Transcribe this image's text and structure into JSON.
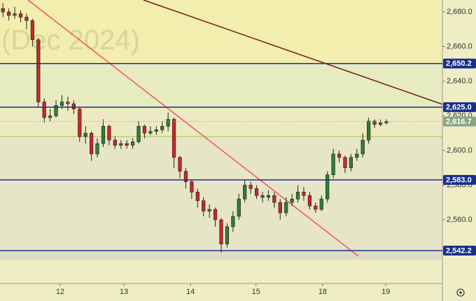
{
  "chart_data": {
    "type": "candlestick",
    "watermark": "(Dec 2024)",
    "x": [
      0,
      1,
      2,
      3,
      4,
      5,
      6,
      7,
      8,
      9,
      10,
      11,
      12,
      13,
      14,
      15,
      16,
      17,
      18,
      19,
      20,
      21,
      22,
      23,
      24,
      25,
      26,
      27,
      28,
      29,
      30,
      31,
      32,
      33,
      34,
      35,
      36,
      37,
      38,
      39,
      40,
      41,
      42,
      43,
      44,
      45,
      46,
      47,
      48,
      49,
      50,
      51,
      52,
      53,
      54,
      55,
      56,
      57,
      58,
      59,
      60,
      61,
      62,
      63,
      64,
      65
    ],
    "open": [
      2682,
      2680,
      2678,
      2679,
      2677,
      2675,
      2664,
      2628,
      2619,
      2620,
      2626,
      2628,
      2627,
      2624,
      2608,
      2610,
      2598,
      2604,
      2614,
      2606,
      2603,
      2604,
      2603,
      2605,
      2614,
      2610,
      2611,
      2612,
      2614,
      2618,
      2596,
      2588,
      2582,
      2576,
      2571,
      2565,
      2566,
      2560,
      2546,
      2556,
      2562,
      2572,
      2580,
      2578,
      2574,
      2573,
      2574,
      2570,
      2564,
      2570,
      2572,
      2576,
      2574,
      2568,
      2566,
      2572,
      2586,
      2598,
      2596,
      2590,
      2596,
      2598,
      2606,
      2617,
      2615,
      2616
    ],
    "high": [
      2685,
      2682,
      2683,
      2681,
      2679,
      2676,
      2665,
      2630,
      2624,
      2629,
      2632,
      2631,
      2629,
      2625,
      2614,
      2611,
      2607,
      2618,
      2615,
      2608,
      2606,
      2606,
      2607,
      2617,
      2615,
      2614,
      2614,
      2617,
      2622,
      2619,
      2597,
      2590,
      2583,
      2578,
      2573,
      2569,
      2567,
      2561,
      2558,
      2565,
      2575,
      2583,
      2582,
      2580,
      2576,
      2577,
      2576,
      2572,
      2573,
      2575,
      2580,
      2579,
      2576,
      2570,
      2574,
      2588,
      2601,
      2600,
      2597,
      2598,
      2601,
      2610,
      2619,
      2618,
      2618,
      2618
    ],
    "low": [
      2677,
      2675,
      2676,
      2674,
      2670,
      2660,
      2625,
      2616,
      2617,
      2619,
      2624,
      2623,
      2621,
      2605,
      2604,
      2594,
      2596,
      2602,
      2603,
      2601,
      2601,
      2601,
      2601,
      2604,
      2607,
      2609,
      2609,
      2610,
      2611,
      2590,
      2584,
      2578,
      2572,
      2567,
      2562,
      2561,
      2556,
      2541,
      2544,
      2553,
      2560,
      2570,
      2575,
      2572,
      2570,
      2571,
      2567,
      2560,
      2562,
      2568,
      2570,
      2571,
      2566,
      2564,
      2565,
      2570,
      2584,
      2593,
      2587,
      2588,
      2594,
      2596,
      2604,
      2613,
      2614,
      2615
    ],
    "close": [
      2680,
      2678,
      2679,
      2677,
      2675,
      2664,
      2628,
      2619,
      2620,
      2626,
      2628,
      2627,
      2624,
      2608,
      2610,
      2598,
      2604,
      2614,
      2606,
      2603,
      2604,
      2603,
      2605,
      2614,
      2610,
      2611,
      2612,
      2614,
      2618,
      2596,
      2588,
      2582,
      2576,
      2571,
      2565,
      2566,
      2560,
      2546,
      2556,
      2562,
      2572,
      2580,
      2578,
      2574,
      2573,
      2574,
      2570,
      2564,
      2570,
      2572,
      2576,
      2574,
      2568,
      2566,
      2572,
      2586,
      2598,
      2596,
      2590,
      2596,
      2598,
      2606,
      2617,
      2615,
      2616,
      2616.7
    ],
    "up_color": "#2f7d32",
    "down_color": "#c62828",
    "xlim": [
      -0.5,
      74.5
    ],
    "xticks": [
      {
        "value": 9.7,
        "label": "12"
      },
      {
        "value": 20.5,
        "label": "13"
      },
      {
        "value": 31.8,
        "label": "14"
      },
      {
        "value": 42.9,
        "label": "15"
      },
      {
        "value": 54.2,
        "label": "18"
      },
      {
        "value": 64.9,
        "label": "19"
      }
    ],
    "ylim": [
      2523.2,
      2686.9
    ],
    "yticks": [
      {
        "value": 2560,
        "label": "2,560.0"
      },
      {
        "value": 2580,
        "label": "2,580.0"
      },
      {
        "value": 2600,
        "label": "2,600.0"
      },
      {
        "value": 2620,
        "label": "2,620.0"
      },
      {
        "value": 2640,
        "label": "2,640.0"
      },
      {
        "value": 2660,
        "label": "2,660.0"
      },
      {
        "value": 2680,
        "label": "2,680.0"
      }
    ],
    "levels": [
      {
        "value": 2650.2,
        "label": "2,650.2"
      },
      {
        "value": 2625.0,
        "label": "2,625.0"
      },
      {
        "value": 2583.0,
        "label": "2,583.0"
      },
      {
        "value": 2542.2,
        "label": "2,542.2"
      }
    ],
    "level_color": "#1a2f8a",
    "last_price": {
      "value": 2616.7,
      "label": "2,616.7"
    },
    "last_color": "#8aa584"
  }
}
